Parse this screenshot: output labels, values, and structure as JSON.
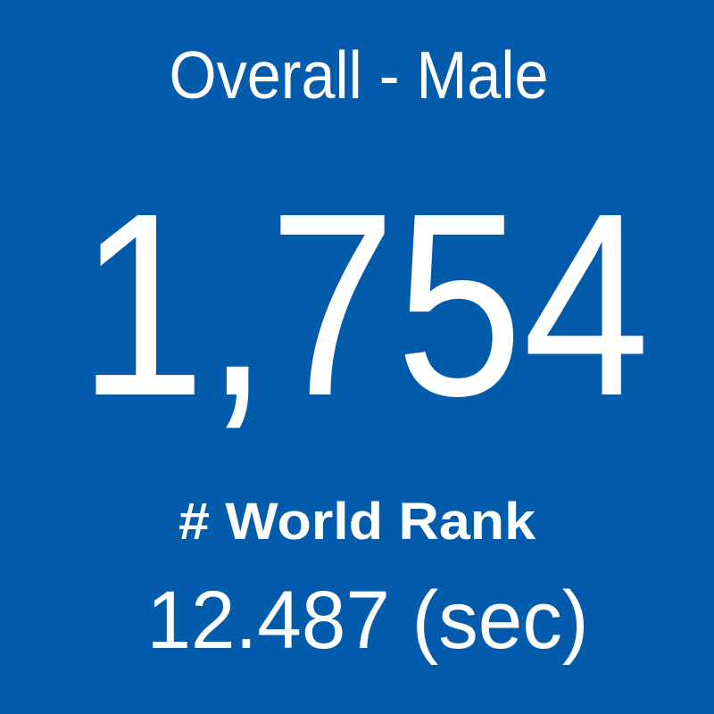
{
  "header": {
    "title": "Overall - Male"
  },
  "rank": {
    "value": "1,754",
    "label": "# World Rank"
  },
  "time": {
    "value": "12.487 (sec)"
  }
}
